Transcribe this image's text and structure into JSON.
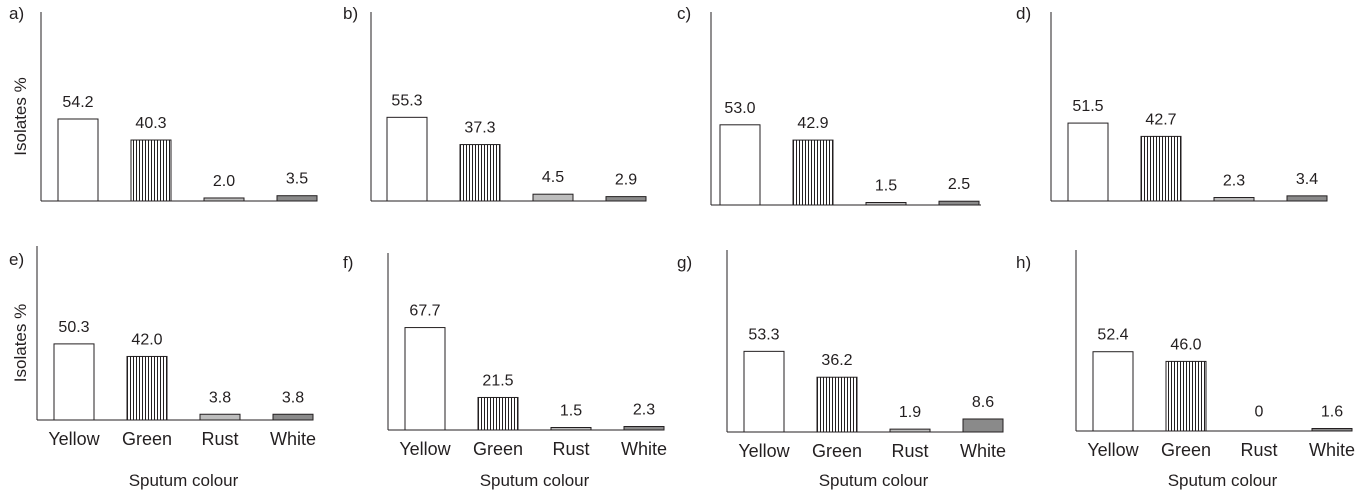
{
  "figure": {
    "ylabel": "Isolates %",
    "xlabel": "Sputum colour",
    "categories": [
      "Yellow",
      "Green",
      "Rust",
      "White"
    ],
    "colors": {
      "Yellow": "#ffffff",
      "Green": "hatched-vertical",
      "Rust": "#bdbdbd",
      "White": "#8a8a8a",
      "ink": "#231f20"
    }
  },
  "chart_data": [
    {
      "type": "bar",
      "panel": "a)",
      "categories": [
        "Yellow",
        "Green",
        "Rust",
        "White"
      ],
      "values": [
        54.2,
        40.3,
        2.0,
        3.5
      ],
      "value_labels": [
        "54.2",
        "40.3",
        "2.0",
        "3.5"
      ],
      "ylabel": "Isolates %",
      "xlabel": ""
    },
    {
      "type": "bar",
      "panel": "b)",
      "categories": [
        "Yellow",
        "Green",
        "Rust",
        "White"
      ],
      "values": [
        55.3,
        37.3,
        4.5,
        2.9
      ],
      "value_labels": [
        "55.3",
        "37.3",
        "4.5",
        "2.9"
      ],
      "ylabel": "",
      "xlabel": ""
    },
    {
      "type": "bar",
      "panel": "c)",
      "categories": [
        "Yellow",
        "Green",
        "Rust",
        "White"
      ],
      "values": [
        53.0,
        42.9,
        1.5,
        2.5
      ],
      "value_labels": [
        "53.0",
        "42.9",
        "1.5",
        "2.5"
      ],
      "ylabel": "",
      "xlabel": ""
    },
    {
      "type": "bar",
      "panel": "d)",
      "categories": [
        "Yellow",
        "Green",
        "Rust",
        "White"
      ],
      "values": [
        51.5,
        42.7,
        2.3,
        3.4
      ],
      "value_labels": [
        "51.5",
        "42.7",
        "2.3",
        "3.4"
      ],
      "ylabel": "",
      "xlabel": ""
    },
    {
      "type": "bar",
      "panel": "e)",
      "categories": [
        "Yellow",
        "Green",
        "Rust",
        "White"
      ],
      "values": [
        50.3,
        42.0,
        3.8,
        3.8
      ],
      "value_labels": [
        "50.3",
        "42.0",
        "3.8",
        "3.8"
      ],
      "ylabel": "Isolates %",
      "xlabel": "Sputum colour"
    },
    {
      "type": "bar",
      "panel": "f)",
      "categories": [
        "Yellow",
        "Green",
        "Rust",
        "White"
      ],
      "values": [
        67.7,
        21.5,
        1.5,
        2.3
      ],
      "value_labels": [
        "67.7",
        "21.5",
        "1.5",
        "2.3"
      ],
      "ylabel": "",
      "xlabel": "Sputum colour"
    },
    {
      "type": "bar",
      "panel": "g)",
      "categories": [
        "Yellow",
        "Green",
        "Rust",
        "White"
      ],
      "values": [
        53.3,
        36.2,
        1.9,
        8.6
      ],
      "value_labels": [
        "53.3",
        "36.2",
        "1.9",
        "8.6"
      ],
      "ylabel": "",
      "xlabel": "Sputum colour"
    },
    {
      "type": "bar",
      "panel": "h)",
      "categories": [
        "Yellow",
        "Green",
        "Rust",
        "White"
      ],
      "values": [
        52.4,
        46.0,
        0,
        1.6
      ],
      "value_labels": [
        "52.4",
        "46.0",
        "0",
        "1.6"
      ],
      "ylabel": "",
      "xlabel": "Sputum colour"
    }
  ]
}
